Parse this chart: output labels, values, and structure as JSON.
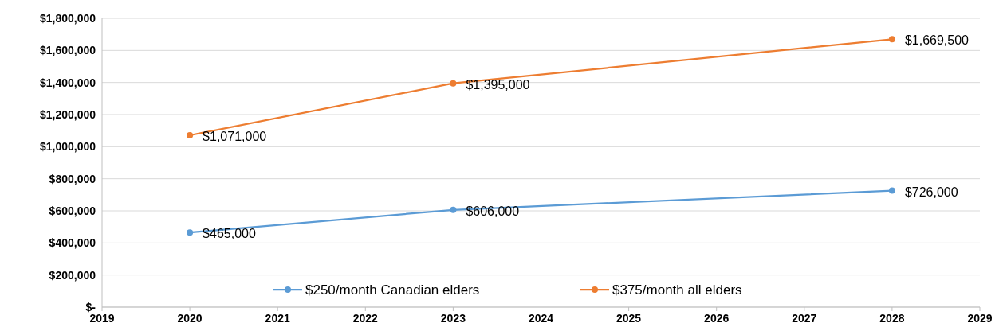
{
  "chart_data": {
    "type": "line",
    "x": [
      2020,
      2023,
      2028
    ],
    "series": [
      {
        "name": "$250/month Canadian elders",
        "color": "#5b9bd5",
        "values": [
          465000,
          606000,
          726000
        ],
        "value_labels": [
          "$465,000",
          "$606,000",
          "$726,000"
        ]
      },
      {
        "name": "$375/month all elders",
        "color": "#ed7d31",
        "values": [
          1071000,
          1395000,
          1669500
        ],
        "value_labels": [
          "$1,071,000",
          "$1,395,000",
          "$1,669,500"
        ]
      }
    ],
    "xlim": [
      2019,
      2029
    ],
    "xticks": [
      2019,
      2020,
      2021,
      2022,
      2023,
      2024,
      2025,
      2026,
      2027,
      2028,
      2029
    ],
    "ylim": [
      0,
      1800000
    ],
    "yticks": [
      {
        "value": 0,
        "label": "$-"
      },
      {
        "value": 200000,
        "label": "$200,000"
      },
      {
        "value": 400000,
        "label": "$400,000"
      },
      {
        "value": 600000,
        "label": "$600,000"
      },
      {
        "value": 800000,
        "label": "$800,000"
      },
      {
        "value": 1000000,
        "label": "$1,000,000"
      },
      {
        "value": 1200000,
        "label": "$1,200,000"
      },
      {
        "value": 1400000,
        "label": "$1,400,000"
      },
      {
        "value": 1600000,
        "label": "$1,600,000"
      },
      {
        "value": 1800000,
        "label": "$1,800,000"
      }
    ],
    "grid": "y",
    "legend": "bottom",
    "marker": "circle",
    "line_style": "solid"
  }
}
